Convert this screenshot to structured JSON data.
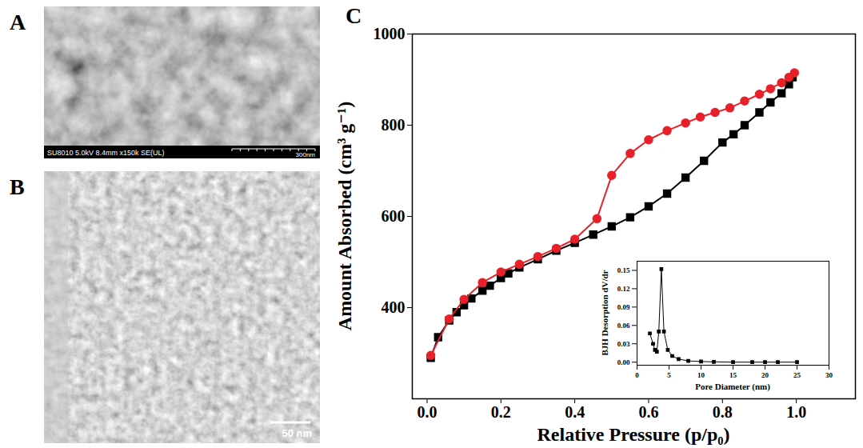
{
  "panels": [
    {
      "panel_label": "A",
      "type": "image",
      "info_bar": "SU8010 5.0kV 8.4mm x150k SE(UL)",
      "scale_bar": "300nm"
    },
    {
      "panel_label": "B",
      "type": "image",
      "scale_bar": "50 nm"
    }
  ],
  "chart_data": [
    {
      "panel_label": "C",
      "type": "line",
      "x_label": "Relative Pressure (p/p₀)",
      "y_label": "Amount Absorbed (cm³ g⁻¹)",
      "xlim": [
        -0.04,
        1.16
      ],
      "xticks": [
        {
          "value": 0,
          "label": "0.0"
        },
        {
          "value": 0.2,
          "label": "0.2"
        },
        {
          "value": 0.4,
          "label": "0.4"
        },
        {
          "value": 0.6,
          "label": "0.6"
        },
        {
          "value": 0.8,
          "label": "0.8"
        },
        {
          "value": 1,
          "label": "1.0"
        }
      ],
      "ylim": [
        200,
        1000
      ],
      "yticks": [
        400,
        600,
        800,
        1000
      ],
      "grid": false,
      "series": [
        {
          "color": "#000000",
          "marker": "square",
          "line_style": "solid",
          "x": [
            0.01,
            0.03,
            0.06,
            0.08,
            0.1,
            0.12,
            0.15,
            0.17,
            0.2,
            0.22,
            0.25,
            0.3,
            0.35,
            0.4,
            0.45,
            0.5,
            0.55,
            0.6,
            0.65,
            0.7,
            0.75,
            0.8,
            0.83,
            0.86,
            0.9,
            0.93,
            0.96,
            0.98,
            0.99
          ],
          "values": [
            290,
            335,
            372,
            390,
            405,
            420,
            437,
            448,
            465,
            475,
            488,
            506,
            525,
            542,
            560,
            578,
            598,
            622,
            650,
            685,
            722,
            762,
            780,
            800,
            828,
            850,
            870,
            890,
            905
          ]
        },
        {
          "color": "#e8202a",
          "marker": "circle",
          "line_style": "solid",
          "x": [
            0.995,
            0.98,
            0.96,
            0.93,
            0.9,
            0.86,
            0.82,
            0.78,
            0.74,
            0.7,
            0.65,
            0.6,
            0.55,
            0.5,
            0.46,
            0.4,
            0.35,
            0.3,
            0.25,
            0.2,
            0.15,
            0.1,
            0.06,
            0.01
          ],
          "values": [
            915,
            905,
            893,
            880,
            868,
            853,
            838,
            828,
            818,
            805,
            788,
            768,
            738,
            690,
            595,
            550,
            530,
            512,
            495,
            478,
            455,
            418,
            375,
            295
          ]
        }
      ]
    },
    {
      "type": "line",
      "x_label": "Pore Diameter (nm)",
      "y_label": "BJH Desorption dV/dr",
      "xlim": [
        0,
        30
      ],
      "xticks": [
        0,
        5,
        10,
        15,
        20,
        25,
        30
      ],
      "ylim": [
        -0.005,
        0.165
      ],
      "yticks": [
        {
          "value": 0,
          "label": "0.00"
        },
        {
          "value": 0.03,
          "label": "0.03"
        },
        {
          "value": 0.06,
          "label": "0.06"
        },
        {
          "value": 0.09,
          "label": "0.09"
        },
        {
          "value": 0.12,
          "label": "0.12"
        },
        {
          "value": 0.15,
          "label": "0.15"
        }
      ],
      "grid": false,
      "series": [
        {
          "color": "#000000",
          "marker": "square",
          "line_style": "solid",
          "x": [
            2.0,
            2.5,
            2.8,
            3.1,
            3.4,
            3.8,
            4.2,
            4.8,
            5.5,
            6.5,
            8,
            10,
            12,
            15,
            18,
            20,
            22,
            25
          ],
          "values": [
            0.047,
            0.03,
            0.02,
            0.017,
            0.05,
            0.152,
            0.05,
            0.02,
            0.01,
            0.005,
            0.002,
            0.001,
            0.0005,
            0,
            0,
            0,
            0,
            0
          ]
        }
      ]
    }
  ]
}
